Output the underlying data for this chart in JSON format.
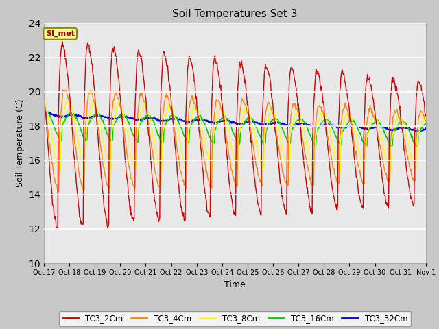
{
  "title": "Soil Temperatures Set 3",
  "xlabel": "Time",
  "ylabel": "Soil Temperature (C)",
  "ylim": [
    10,
    24
  ],
  "yticks": [
    10,
    12,
    14,
    16,
    18,
    20,
    22,
    24
  ],
  "x_labels": [
    "Oct 17",
    "Oct 18",
    "Oct 19",
    "Oct 20",
    "Oct 21",
    "Oct 22",
    "Oct 23",
    "Oct 24",
    "Oct 25",
    "Oct 26",
    "Oct 27",
    "Oct 28",
    "Oct 29",
    "Oct 30",
    "Oct 31",
    "Nov 1"
  ],
  "series_colors": {
    "TC3_2Cm": "#cc0000",
    "TC3_4Cm": "#ff8800",
    "TC3_8Cm": "#ffff00",
    "TC3_16Cm": "#00cc00",
    "TC3_32Cm": "#0000ee"
  },
  "annotation_text": "SI_met",
  "annotation_color": "#990000",
  "annotation_bg": "#ffff99",
  "annotation_border": "#888800",
  "fig_bg": "#c8c8c8",
  "plot_bg": "#e8e8e8",
  "n_days": 15,
  "n_pts_per_day": 48
}
